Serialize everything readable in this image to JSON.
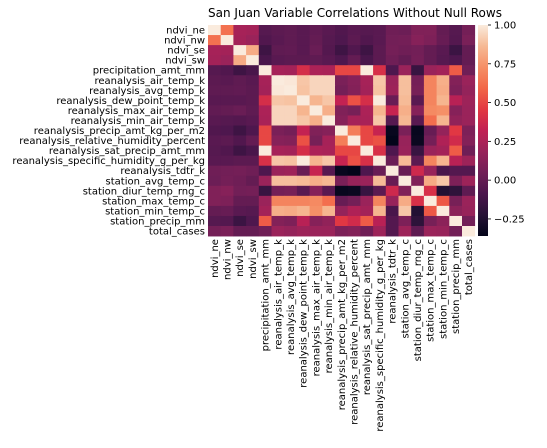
{
  "chart_data": {
    "type": "heatmap",
    "title": "San Juan Variable Correlations Without Null Rows",
    "labels": [
      "ndvi_ne",
      "ndvi_nw",
      "ndvi_se",
      "ndvi_sw",
      "precipitation_amt_mm",
      "reanalysis_air_temp_k",
      "reanalysis_avg_temp_k",
      "reanalysis_dew_point_temp_k",
      "reanalysis_max_air_temp_k",
      "reanalysis_min_air_temp_k",
      "reanalysis_precip_amt_kg_per_m2",
      "reanalysis_relative_humidity_percent",
      "reanalysis_sat_precip_amt_mm",
      "reanalysis_specific_humidity_g_per_kg",
      "reanalysis_tdtr_k",
      "station_avg_temp_c",
      "station_diur_temp_rng_c",
      "station_max_temp_c",
      "station_min_temp_c",
      "station_precip_mm",
      "total_cases"
    ],
    "matrix": [
      [
        1.0,
        0.63,
        0.23,
        0.22,
        -0.05,
        -0.03,
        -0.02,
        -0.04,
        -0.01,
        -0.04,
        -0.07,
        -0.04,
        -0.05,
        -0.04,
        0.04,
        0.03,
        0.1,
        0.1,
        0.0,
        -0.05,
        0.06
      ],
      [
        0.63,
        1.0,
        0.22,
        0.19,
        -0.07,
        -0.04,
        -0.02,
        -0.04,
        0.0,
        -0.05,
        -0.08,
        -0.03,
        -0.07,
        -0.04,
        0.05,
        0.06,
        0.12,
        0.09,
        0.01,
        -0.06,
        0.08
      ],
      [
        0.23,
        0.22,
        1.0,
        0.82,
        -0.14,
        -0.02,
        -0.01,
        -0.04,
        0.02,
        -0.06,
        -0.14,
        -0.07,
        -0.14,
        -0.03,
        0.06,
        0.04,
        0.05,
        0.0,
        -0.04,
        -0.15,
        0.0
      ],
      [
        0.22,
        0.19,
        0.82,
        1.0,
        -0.1,
        -0.04,
        -0.03,
        -0.03,
        -0.02,
        -0.04,
        -0.08,
        0.0,
        -0.1,
        -0.03,
        0.04,
        0.0,
        0.06,
        0.0,
        -0.05,
        -0.08,
        0.0
      ],
      [
        -0.05,
        -0.07,
        -0.14,
        -0.1,
        1.0,
        0.23,
        0.22,
        0.4,
        0.25,
        0.24,
        0.5,
        0.5,
        1.0,
        0.41,
        -0.08,
        0.19,
        -0.16,
        0.19,
        0.22,
        0.56,
        0.04
      ],
      [
        -0.03,
        -0.04,
        -0.02,
        -0.04,
        0.23,
        1.0,
        0.99,
        0.9,
        0.94,
        0.94,
        0.08,
        0.12,
        0.23,
        0.9,
        0.19,
        0.88,
        0.06,
        0.69,
        0.83,
        0.11,
        0.19
      ],
      [
        -0.02,
        -0.02,
        -0.01,
        -0.03,
        0.22,
        0.99,
        1.0,
        0.89,
        0.94,
        0.94,
        0.06,
        0.11,
        0.22,
        0.89,
        0.2,
        0.88,
        0.07,
        0.69,
        0.82,
        0.09,
        0.17
      ],
      [
        -0.04,
        -0.04,
        -0.04,
        -0.03,
        0.4,
        0.9,
        0.89,
        1.0,
        0.85,
        0.9,
        0.33,
        0.53,
        0.4,
        1.0,
        0.02,
        0.87,
        -0.04,
        0.69,
        0.85,
        0.29,
        0.2
      ],
      [
        -0.01,
        0.0,
        0.02,
        -0.02,
        0.25,
        0.94,
        0.94,
        0.85,
        1.0,
        0.83,
        0.1,
        0.07,
        0.25,
        0.85,
        0.34,
        0.83,
        0.12,
        0.71,
        0.73,
        0.12,
        0.19
      ],
      [
        -0.04,
        -0.05,
        -0.06,
        -0.04,
        0.24,
        0.94,
        0.94,
        0.9,
        0.83,
        1.0,
        0.12,
        0.23,
        0.24,
        0.9,
        -0.05,
        0.86,
        -0.04,
        0.62,
        0.85,
        0.16,
        0.19
      ],
      [
        -0.07,
        -0.08,
        -0.14,
        -0.08,
        0.5,
        0.08,
        0.06,
        0.33,
        0.1,
        0.12,
        1.0,
        0.67,
        0.5,
        0.34,
        -0.34,
        0.08,
        -0.34,
        0.01,
        0.17,
        0.45,
        0.09
      ],
      [
        -0.04,
        -0.03,
        -0.07,
        0.0,
        0.5,
        0.12,
        0.11,
        0.53,
        0.07,
        0.23,
        0.67,
        1.0,
        0.5,
        0.53,
        -0.36,
        0.18,
        -0.33,
        0.06,
        0.26,
        0.38,
        0.11
      ],
      [
        -0.05,
        -0.07,
        -0.14,
        -0.1,
        1.0,
        0.23,
        0.22,
        0.4,
        0.25,
        0.24,
        0.5,
        0.5,
        1.0,
        0.41,
        -0.08,
        0.19,
        -0.16,
        0.19,
        0.22,
        0.56,
        0.04
      ],
      [
        -0.04,
        -0.04,
        -0.03,
        -0.03,
        0.41,
        0.9,
        0.89,
        1.0,
        0.85,
        0.9,
        0.34,
        0.53,
        0.41,
        1.0,
        0.02,
        0.87,
        -0.03,
        0.69,
        0.85,
        0.29,
        0.2
      ],
      [
        0.04,
        0.05,
        0.06,
        0.04,
        -0.08,
        0.19,
        0.2,
        0.02,
        0.34,
        -0.05,
        -0.34,
        -0.36,
        -0.08,
        0.02,
        1.0,
        0.01,
        0.37,
        0.18,
        -0.1,
        -0.06,
        -0.06
      ],
      [
        0.03,
        0.06,
        0.04,
        0.0,
        0.19,
        0.88,
        0.88,
        0.87,
        0.83,
        0.86,
        0.08,
        0.18,
        0.19,
        0.87,
        0.01,
        1.0,
        0.1,
        0.82,
        0.9,
        0.09,
        0.2
      ],
      [
        0.1,
        0.12,
        0.05,
        0.06,
        -0.16,
        0.06,
        0.07,
        -0.04,
        0.12,
        -0.04,
        -0.34,
        -0.33,
        -0.16,
        -0.03,
        0.37,
        0.1,
        1.0,
        0.41,
        -0.24,
        -0.2,
        -0.02
      ],
      [
        0.1,
        0.09,
        0.0,
        0.0,
        0.19,
        0.69,
        0.69,
        0.69,
        0.71,
        0.62,
        0.01,
        0.06,
        0.19,
        0.69,
        0.18,
        0.82,
        0.41,
        1.0,
        0.55,
        0.07,
        0.19
      ],
      [
        0.0,
        0.01,
        -0.04,
        -0.05,
        0.22,
        0.83,
        0.82,
        0.85,
        0.73,
        0.85,
        0.17,
        0.26,
        0.22,
        0.85,
        -0.1,
        0.9,
        -0.24,
        0.55,
        1.0,
        0.14,
        0.18
      ],
      [
        -0.05,
        -0.06,
        -0.15,
        -0.08,
        0.56,
        0.11,
        0.09,
        0.29,
        0.12,
        0.16,
        0.45,
        0.38,
        0.56,
        0.29,
        -0.06,
        0.09,
        -0.2,
        0.07,
        0.14,
        1.0,
        0.05
      ],
      [
        0.06,
        0.08,
        0.0,
        0.0,
        0.04,
        0.19,
        0.17,
        0.2,
        0.19,
        0.19,
        0.09,
        0.11,
        0.04,
        0.2,
        -0.06,
        0.2,
        -0.02,
        0.19,
        0.18,
        0.05,
        1.0
      ]
    ],
    "vmin": -0.36,
    "vmax": 1.0,
    "colorbar_ticks": [
      1.0,
      0.75,
      0.5,
      0.25,
      0.0,
      -0.25
    ],
    "colorbar_tick_labels": [
      "1.00",
      "0.75",
      "0.50",
      "0.25",
      "0.00",
      "−0.25"
    ],
    "colormap": "rocket",
    "grid": false,
    "legend": "colorbar-right"
  }
}
